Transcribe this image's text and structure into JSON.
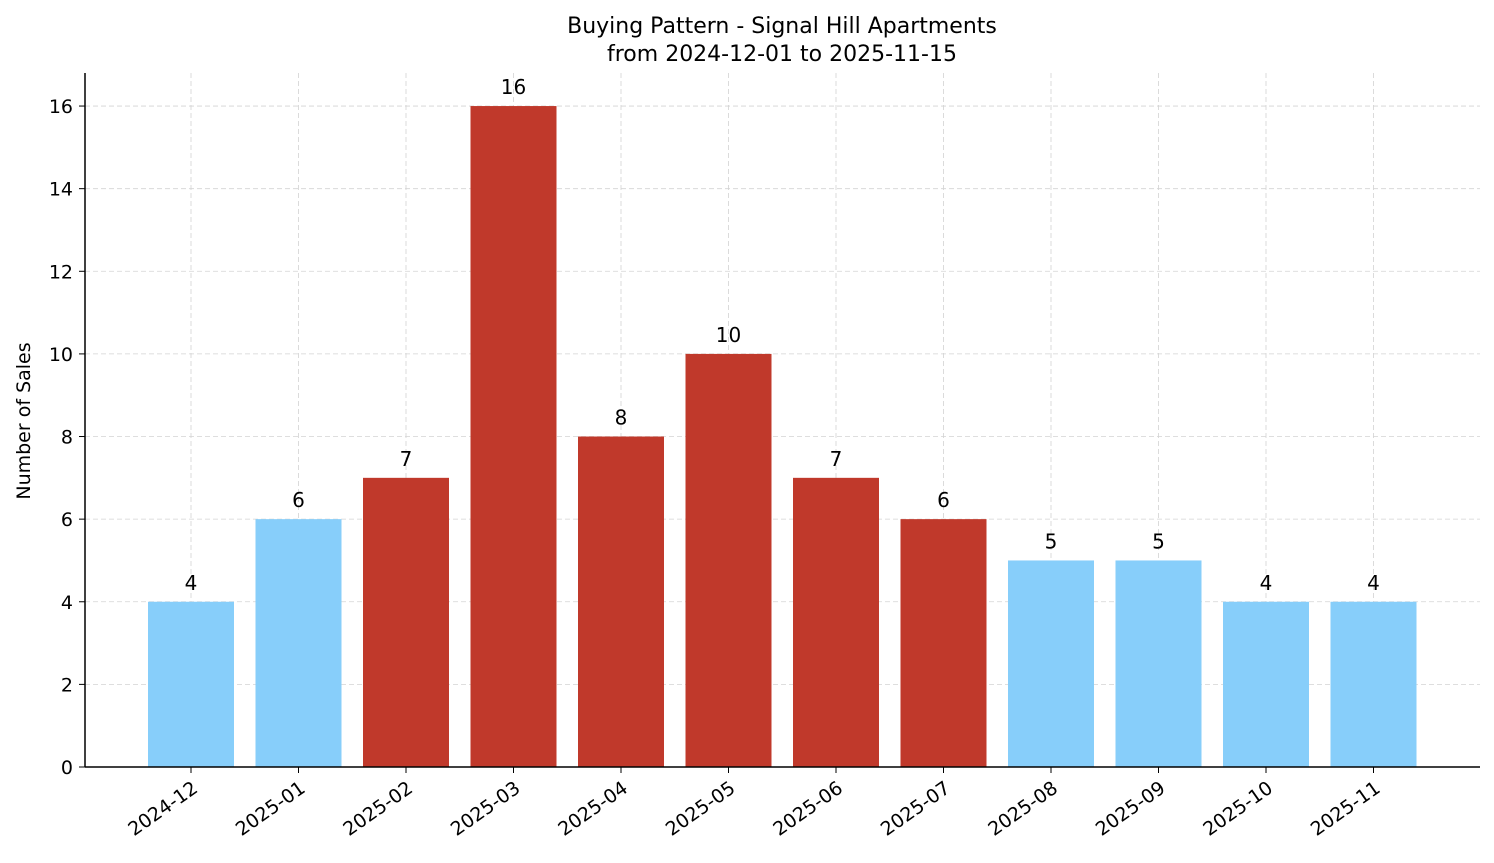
{
  "chart_data": {
    "type": "bar",
    "title": "Buying Pattern - Signal Hill Apartments",
    "subtitle": "from 2024-12-01 to 2025-11-15",
    "y_label": "Number of Sales",
    "categories": [
      "2024-12",
      "2025-01",
      "2025-02",
      "2025-03",
      "2025-04",
      "2025-05",
      "2025-06",
      "2025-07",
      "2025-08",
      "2025-09",
      "2025-10",
      "2025-11"
    ],
    "values": [
      4,
      6,
      7,
      16,
      8,
      10,
      7,
      6,
      5,
      5,
      4,
      4
    ],
    "colors": [
      "#87cefa",
      "#87cefa",
      "#c0392b",
      "#c0392b",
      "#c0392b",
      "#c0392b",
      "#c0392b",
      "#c0392b",
      "#87cefa",
      "#87cefa",
      "#87cefa",
      "#87cefa"
    ],
    "ylim": [
      0,
      16.8
    ],
    "yticks": [
      0,
      2,
      4,
      6,
      8,
      10,
      12,
      14,
      16
    ],
    "grid": true
  }
}
